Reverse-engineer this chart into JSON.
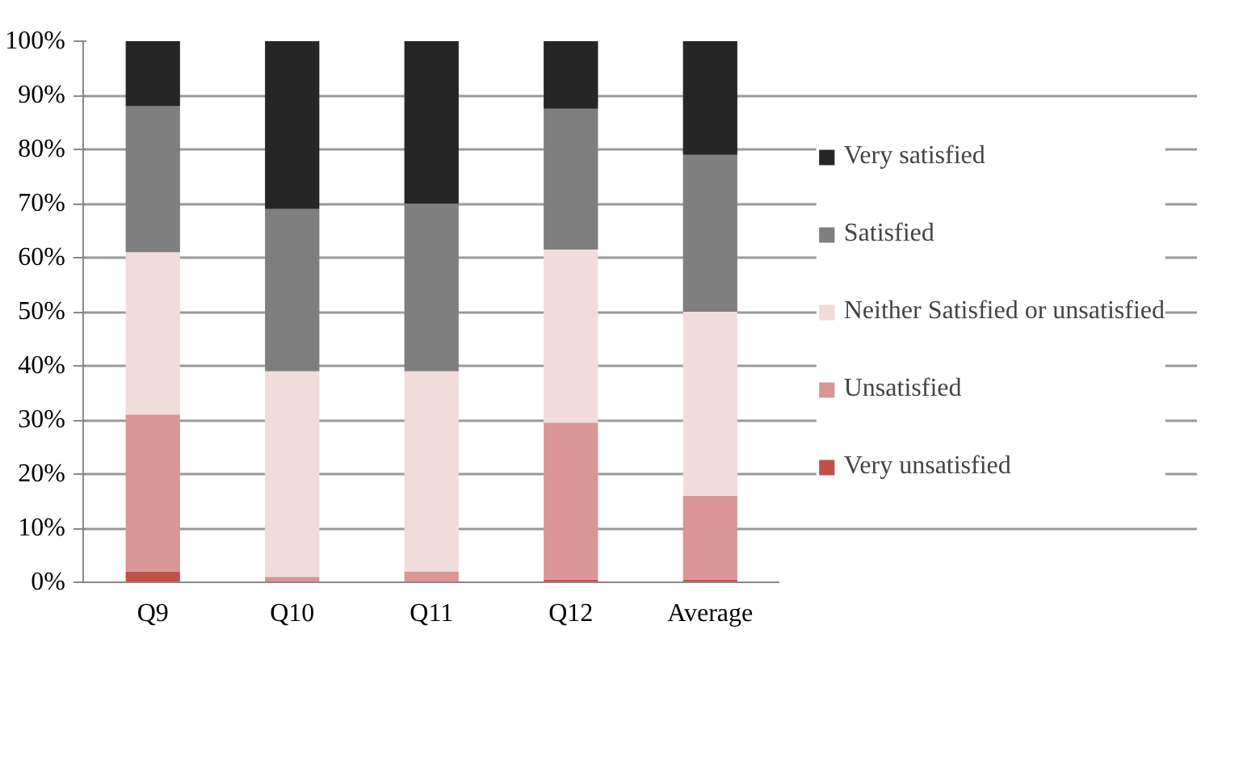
{
  "chart_data": {
    "type": "bar",
    "stacked": true,
    "categories": [
      "Q9",
      "Q10",
      "Q11",
      "Q12",
      "Average"
    ],
    "series": [
      {
        "name": "Very unsatisfied",
        "color": "#c0504d",
        "values": [
          2,
          0,
          0,
          0.5,
          0.5
        ]
      },
      {
        "name": "Unsatisfied",
        "color": "#d99694",
        "values": [
          29,
          1,
          2,
          29,
          15.5
        ]
      },
      {
        "name": "Neither Satisfied or unsatisfied",
        "color": "#f2dcdb",
        "values": [
          30,
          38,
          37,
          32,
          34
        ]
      },
      {
        "name": "Satisfied",
        "color": "#7f7f7f",
        "values": [
          27,
          30,
          31,
          26,
          29
        ]
      },
      {
        "name": "Very satisfied",
        "color": "#262626",
        "values": [
          12,
          31,
          30,
          12.5,
          21
        ]
      }
    ],
    "ylim": [
      0,
      100
    ],
    "yticks": [
      {
        "value": 0,
        "label": "0%"
      },
      {
        "value": 10,
        "label": "10%"
      },
      {
        "value": 20,
        "label": "20%"
      },
      {
        "value": 30,
        "label": "30%"
      },
      {
        "value": 40,
        "label": "40%"
      },
      {
        "value": 50,
        "label": "50%"
      },
      {
        "value": 60,
        "label": "60%"
      },
      {
        "value": 70,
        "label": "70%"
      },
      {
        "value": 80,
        "label": "80%"
      },
      {
        "value": 90,
        "label": "90%"
      },
      {
        "value": 100,
        "label": "100%"
      }
    ],
    "grid": "y",
    "legend": "right"
  }
}
